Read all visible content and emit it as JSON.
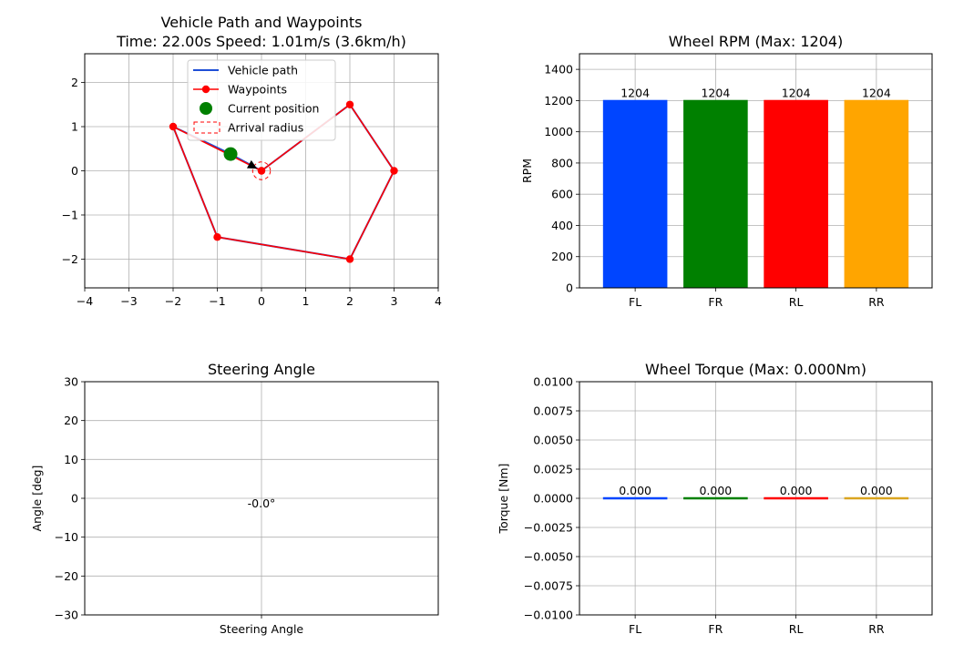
{
  "chart_data": [
    {
      "type": "line",
      "title_line1": "Vehicle Path and Waypoints",
      "title_line2": "Time: 22.00s  Speed: 1.01m/s (3.6km/h)",
      "xlabel": "",
      "ylabel": "",
      "xlim": [
        -4,
        4
      ],
      "ylim": [
        -2.65,
        2.65
      ],
      "xticks": [
        -4,
        -3,
        -2,
        -1,
        0,
        1,
        2,
        3,
        4
      ],
      "xtick_labels": [
        "−4",
        "−3",
        "−2",
        "−1",
        "0",
        "1",
        "2",
        "3",
        "4"
      ],
      "yticks": [
        -2,
        -1,
        0,
        1,
        2
      ],
      "ytick_labels": [
        "−2",
        "−1",
        "0",
        "1",
        "2"
      ],
      "grid": true,
      "legend_placement": "top-center",
      "legend": [
        {
          "label": "Vehicle path",
          "kind": "line",
          "color": "#1f4fd6"
        },
        {
          "label": "Waypoints",
          "kind": "line-marker",
          "color": "#ff0000"
        },
        {
          "label": "Current position",
          "kind": "dot",
          "color": "#008000"
        },
        {
          "label": "Arrival radius",
          "kind": "dashed-box",
          "color": "#ff0000"
        }
      ],
      "series": [
        {
          "name": "Vehicle path",
          "color": "#1f4fd6",
          "x": [
            0,
            2,
            3,
            2,
            -1,
            -2,
            -0.7,
            0
          ],
          "y": [
            0,
            1.5,
            0,
            -2,
            -1.5,
            1,
            0.38,
            0
          ]
        },
        {
          "name": "Waypoints",
          "color": "#ff0000",
          "x": [
            0,
            2,
            3,
            2,
            -1,
            -2,
            0
          ],
          "y": [
            0,
            1.5,
            0,
            -2,
            -1.5,
            1,
            0
          ]
        }
      ],
      "current_position": {
        "x": -0.7,
        "y": 0.38,
        "color": "#008000"
      },
      "heading_arrow": {
        "from": [
          -0.3,
          0.16
        ],
        "to": [
          -0.1,
          0.05
        ]
      },
      "arrival_radius": {
        "x": 0,
        "y": 0,
        "r": 0.2,
        "color": "#ff0000"
      }
    },
    {
      "type": "bar",
      "title": "Wheel RPM (Max: 1204)",
      "xlabel": "",
      "ylabel": "RPM",
      "ylim": [
        0,
        1500
      ],
      "yticks": [
        0,
        200,
        400,
        600,
        800,
        1000,
        1200,
        1400
      ],
      "ytick_labels": [
        "0",
        "200",
        "400",
        "600",
        "800",
        "1000",
        "1200",
        "1400"
      ],
      "categories": [
        "FL",
        "FR",
        "RL",
        "RR"
      ],
      "values": [
        1204,
        1204,
        1204,
        1204
      ],
      "value_labels": [
        "1204",
        "1204",
        "1204",
        "1204"
      ],
      "colors": [
        "#0045ff",
        "#008000",
        "#ff0000",
        "#ffa500"
      ],
      "grid": true
    },
    {
      "type": "bar",
      "title": "Steering Angle",
      "xlabel": "",
      "ylabel": "Angle [deg]",
      "ylim": [
        -30,
        30
      ],
      "yticks": [
        -30,
        -20,
        -10,
        0,
        10,
        20,
        30
      ],
      "ytick_labels": [
        "−30",
        "−20",
        "−10",
        "0",
        "10",
        "20",
        "30"
      ],
      "categories": [
        "Steering Angle"
      ],
      "values": [
        -0.0
      ],
      "value_labels": [
        "-0.0°"
      ],
      "grid": true
    },
    {
      "type": "bar",
      "title": "Wheel Torque (Max: 0.000Nm)",
      "xlabel": "",
      "ylabel": "Torque [Nm]",
      "ylim": [
        -0.01,
        0.01
      ],
      "yticks": [
        -0.01,
        -0.0075,
        -0.005,
        -0.0025,
        0,
        0.0025,
        0.005,
        0.0075,
        0.01
      ],
      "ytick_labels": [
        "−0.0100",
        "−0.0075",
        "−0.0050",
        "−0.0025",
        "0.0000",
        "0.0025",
        "0.0050",
        "0.0075",
        "0.0100"
      ],
      "categories": [
        "FL",
        "FR",
        "RL",
        "RR"
      ],
      "values": [
        0.0,
        0.0,
        0.0,
        0.0
      ],
      "value_labels": [
        "0.000",
        "0.000",
        "0.000",
        "0.000"
      ],
      "colors": [
        "#0045ff",
        "#008000",
        "#ff0000",
        "#daa520"
      ],
      "grid": true
    }
  ]
}
